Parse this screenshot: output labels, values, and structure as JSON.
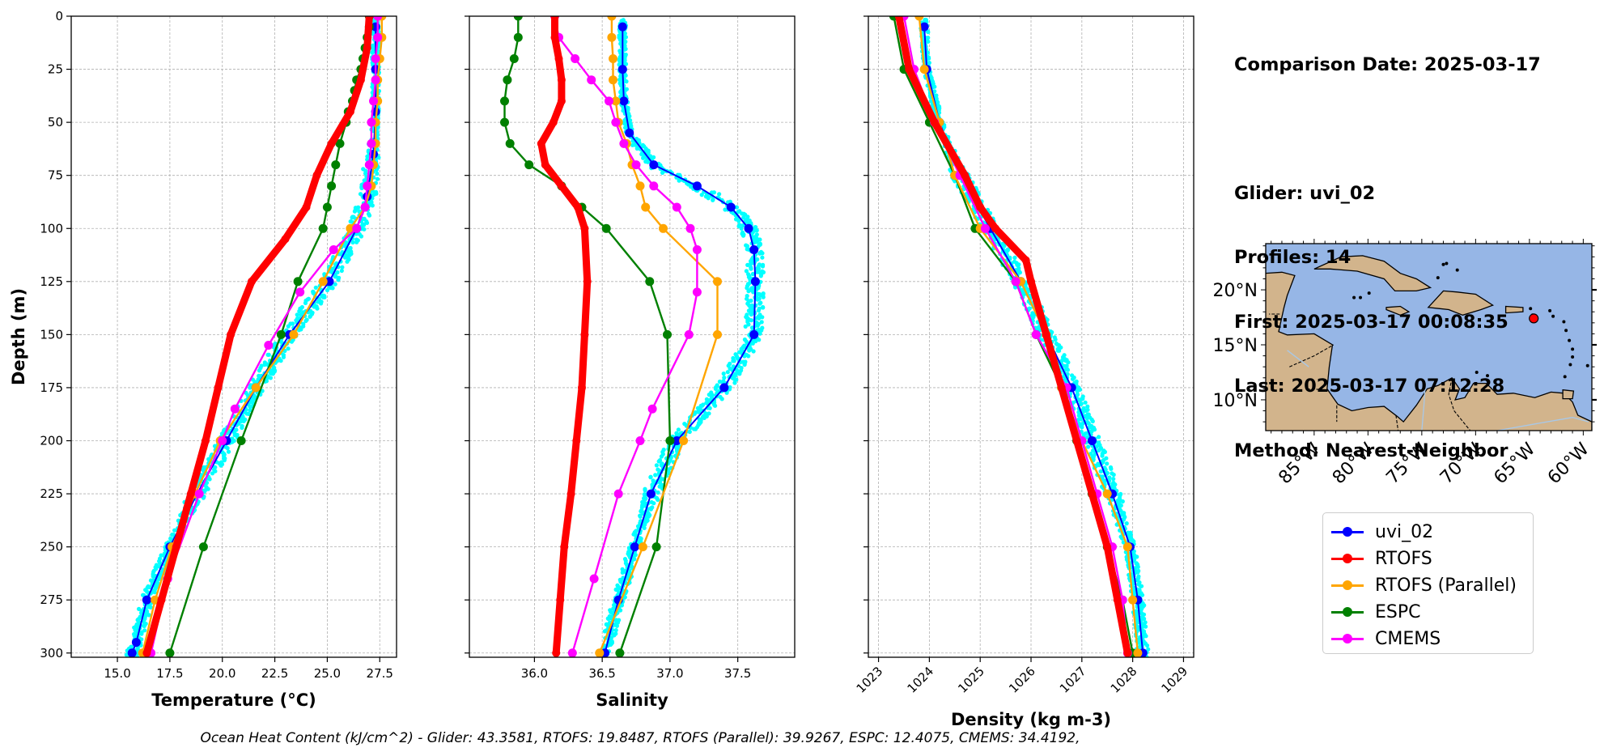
{
  "info": {
    "comparison_date": "Comparison Date: 2025-03-17",
    "glider": "Glider: uvi_02",
    "profiles": "Profiles: 14",
    "first": "First: 2025-03-17 00:08:35",
    "last": "Last: 2025-03-17 07:12:28",
    "method": "Method: Nearest-Neighbor"
  },
  "footer": {
    "text": "Ocean Heat Content (kJ/cm^2) - Glider: 43.3581,  RTOFS: 19.8487,  RTOFS (Parallel): 39.9267,  ESPC: 12.4075,  CMEMS: 34.4192,"
  },
  "legend": [
    {
      "name": "uvi_02",
      "color": "#0000ff"
    },
    {
      "name": "RTOFS",
      "color": "#ff0000"
    },
    {
      "name": "RTOFS (Parallel)",
      "color": "#ffa500"
    },
    {
      "name": "ESPC",
      "color": "#008000"
    },
    {
      "name": "CMEMS",
      "color": "#ff00ff"
    }
  ],
  "colors": {
    "glider_raw": "#00ffff",
    "grid": "#b0b0b0",
    "ocean": "#96b6e6",
    "land": "#d2b48c",
    "marker": "#ff0000"
  },
  "chart_data": [
    {
      "type": "line",
      "id": "temperature",
      "xlabel": "Temperature (°C)",
      "ylabel": "Depth (m)",
      "xlim": [
        12.8,
        28.3
      ],
      "ylim": [
        302,
        0
      ],
      "xticks": [
        "15.0",
        "17.5",
        "20.0",
        "22.5",
        "25.0",
        "27.5"
      ],
      "yticks": [
        "0",
        "25",
        "50",
        "75",
        "100",
        "125",
        "150",
        "175",
        "200",
        "225",
        "250",
        "275",
        "300"
      ],
      "grid": true,
      "series": [
        {
          "name": "uvi_02",
          "depth": [
            5,
            25,
            45,
            65,
            85,
            100,
            125,
            150,
            175,
            200,
            225,
            250,
            275,
            295,
            300
          ],
          "values": [
            27.3,
            27.3,
            27.3,
            27.2,
            26.9,
            26.4,
            25.1,
            23.2,
            21.6,
            20.2,
            18.8,
            17.5,
            16.4,
            15.9,
            15.7
          ]
        },
        {
          "name": "RTOFS",
          "depth": [
            0,
            15,
            30,
            45,
            60,
            75,
            90,
            105,
            125,
            150,
            175,
            200,
            225,
            250,
            275,
            300
          ],
          "values": [
            27.0,
            26.9,
            26.6,
            26.1,
            25.2,
            24.5,
            24.0,
            23.0,
            21.4,
            20.4,
            19.8,
            19.2,
            18.5,
            17.8,
            17.1,
            16.4
          ]
        },
        {
          "name": "RTOFS (Parallel)",
          "depth": [
            0,
            10,
            20,
            30,
            40,
            50,
            60,
            70,
            80,
            90,
            100,
            125,
            150,
            175,
            200,
            225,
            250,
            275,
            300
          ],
          "values": [
            27.6,
            27.6,
            27.5,
            27.4,
            27.4,
            27.3,
            27.3,
            27.2,
            27.1,
            26.8,
            26.1,
            24.8,
            23.4,
            21.6,
            19.9,
            18.7,
            17.6,
            16.8,
            16.2
          ]
        },
        {
          "name": "ESPC",
          "depth": [
            0,
            5,
            10,
            15,
            20,
            25,
            30,
            35,
            40,
            45,
            50,
            60,
            70,
            80,
            90,
            100,
            125,
            150,
            200,
            250,
            300
          ],
          "values": [
            27.0,
            27.0,
            26.9,
            26.8,
            26.7,
            26.6,
            26.4,
            26.3,
            26.2,
            26.0,
            25.9,
            25.6,
            25.4,
            25.2,
            25.0,
            24.8,
            23.6,
            22.8,
            20.9,
            19.1,
            17.5
          ]
        },
        {
          "name": "CMEMS",
          "depth": [
            0,
            10,
            20,
            30,
            40,
            50,
            60,
            70,
            80,
            90,
            100,
            110,
            130,
            155,
            185,
            200,
            225,
            265,
            300
          ],
          "values": [
            27.4,
            27.4,
            27.3,
            27.3,
            27.2,
            27.1,
            27.1,
            27.0,
            26.9,
            26.8,
            26.4,
            25.3,
            23.7,
            22.2,
            20.6,
            20.0,
            18.9,
            17.4,
            16.6
          ]
        }
      ]
    },
    {
      "type": "line",
      "id": "salinity",
      "xlabel": "Salinity",
      "xlim": [
        35.52,
        37.92
      ],
      "ylim": [
        302,
        0
      ],
      "xticks": [
        "36.0",
        "36.5",
        "37.0",
        "37.5"
      ],
      "grid": true,
      "series": [
        {
          "name": "uvi_02",
          "depth": [
            5,
            25,
            40,
            55,
            70,
            80,
            90,
            100,
            110,
            125,
            150,
            175,
            200,
            225,
            250,
            275,
            300
          ],
          "values": [
            36.65,
            36.65,
            36.66,
            36.7,
            36.88,
            37.2,
            37.45,
            37.58,
            37.62,
            37.63,
            37.62,
            37.4,
            37.05,
            36.86,
            36.74,
            36.62,
            36.52
          ]
        },
        {
          "name": "RTOFS",
          "depth": [
            0,
            10,
            20,
            30,
            40,
            50,
            60,
            70,
            80,
            90,
            100,
            125,
            150,
            175,
            200,
            225,
            250,
            275,
            300
          ],
          "values": [
            36.15,
            36.15,
            36.18,
            36.2,
            36.2,
            36.14,
            36.05,
            36.08,
            36.2,
            36.32,
            36.37,
            36.39,
            36.37,
            36.35,
            36.31,
            36.27,
            36.22,
            36.19,
            36.16
          ]
        },
        {
          "name": "RTOFS (Parallel)",
          "depth": [
            0,
            10,
            20,
            30,
            40,
            50,
            60,
            70,
            80,
            90,
            100,
            125,
            150,
            200,
            250,
            300
          ],
          "values": [
            36.57,
            36.57,
            36.58,
            36.58,
            36.6,
            36.62,
            36.68,
            36.72,
            36.78,
            36.82,
            36.95,
            37.35,
            37.35,
            37.1,
            36.8,
            36.48
          ]
        },
        {
          "name": "ESPC",
          "depth": [
            0,
            10,
            20,
            30,
            40,
            50,
            60,
            70,
            80,
            90,
            100,
            125,
            150,
            200,
            250,
            300
          ],
          "values": [
            35.88,
            35.88,
            35.85,
            35.8,
            35.78,
            35.78,
            35.82,
            35.96,
            36.2,
            36.35,
            36.53,
            36.85,
            36.98,
            37.0,
            36.9,
            36.63
          ]
        },
        {
          "name": "CMEMS",
          "depth": [
            0,
            10,
            20,
            30,
            40,
            50,
            60,
            70,
            80,
            90,
            100,
            110,
            130,
            150,
            185,
            200,
            225,
            265,
            300
          ],
          "values": [
            36.15,
            36.18,
            36.3,
            36.42,
            36.55,
            36.6,
            36.66,
            36.75,
            36.88,
            37.05,
            37.15,
            37.2,
            37.2,
            37.14,
            36.87,
            36.78,
            36.62,
            36.44,
            36.28
          ]
        }
      ]
    },
    {
      "type": "line",
      "id": "density",
      "xlabel": "Density (kg m-3)",
      "xlim": [
        1022.8,
        1029.2
      ],
      "ylim": [
        302,
        0
      ],
      "xticks": [
        "1023",
        "1024",
        "1025",
        "1026",
        "1027",
        "1028",
        "1029"
      ],
      "grid": true,
      "series": [
        {
          "name": "uvi_02",
          "depth": [
            5,
            25,
            50,
            75,
            100,
            125,
            150,
            175,
            200,
            225,
            250,
            275,
            300
          ],
          "values": [
            1023.9,
            1023.95,
            1024.2,
            1024.6,
            1025.2,
            1025.8,
            1026.3,
            1026.8,
            1027.2,
            1027.6,
            1027.95,
            1028.1,
            1028.2
          ]
        },
        {
          "name": "RTOFS",
          "depth": [
            0,
            25,
            50,
            75,
            90,
            100,
            115,
            125,
            150,
            175,
            200,
            225,
            250,
            275,
            300
          ],
          "values": [
            1023.4,
            1023.6,
            1024.1,
            1024.7,
            1025.0,
            1025.3,
            1025.9,
            1026.0,
            1026.3,
            1026.6,
            1026.9,
            1027.2,
            1027.5,
            1027.7,
            1027.9
          ]
        },
        {
          "name": "RTOFS (Parallel)",
          "depth": [
            0,
            25,
            50,
            75,
            100,
            125,
            150,
            175,
            200,
            225,
            250,
            275,
            300
          ],
          "values": [
            1023.8,
            1023.9,
            1024.2,
            1024.5,
            1025.0,
            1025.8,
            1026.3,
            1026.6,
            1027.0,
            1027.5,
            1027.9,
            1028.0,
            1028.1
          ]
        },
        {
          "name": "ESPC",
          "depth": [
            0,
            25,
            50,
            75,
            100,
            125,
            150,
            175,
            200,
            225,
            250,
            275,
            300
          ],
          "values": [
            1023.3,
            1023.5,
            1024.0,
            1024.5,
            1024.9,
            1025.7,
            1026.1,
            1026.6,
            1026.9,
            1027.2,
            1027.5,
            1027.8,
            1028.0
          ]
        },
        {
          "name": "CMEMS",
          "depth": [
            0,
            25,
            50,
            75,
            100,
            125,
            150,
            175,
            200,
            225,
            250,
            275,
            300
          ],
          "values": [
            1023.5,
            1023.7,
            1024.1,
            1024.6,
            1025.1,
            1025.7,
            1026.1,
            1026.7,
            1027.0,
            1027.3,
            1027.6,
            1027.8,
            1027.9
          ]
        }
      ]
    }
  ],
  "map": {
    "lat_ticks": [
      "20°N",
      "15°N",
      "10°N"
    ],
    "lon_ticks": [
      "85°W",
      "80°W",
      "75°W",
      "70°W",
      "65°W",
      "60°W"
    ],
    "lon_range": [
      -89.5,
      -59.2
    ],
    "lat_range": [
      7.2,
      24.2
    ],
    "glider_position": {
      "lon": -64.6,
      "lat": 17.4
    }
  }
}
